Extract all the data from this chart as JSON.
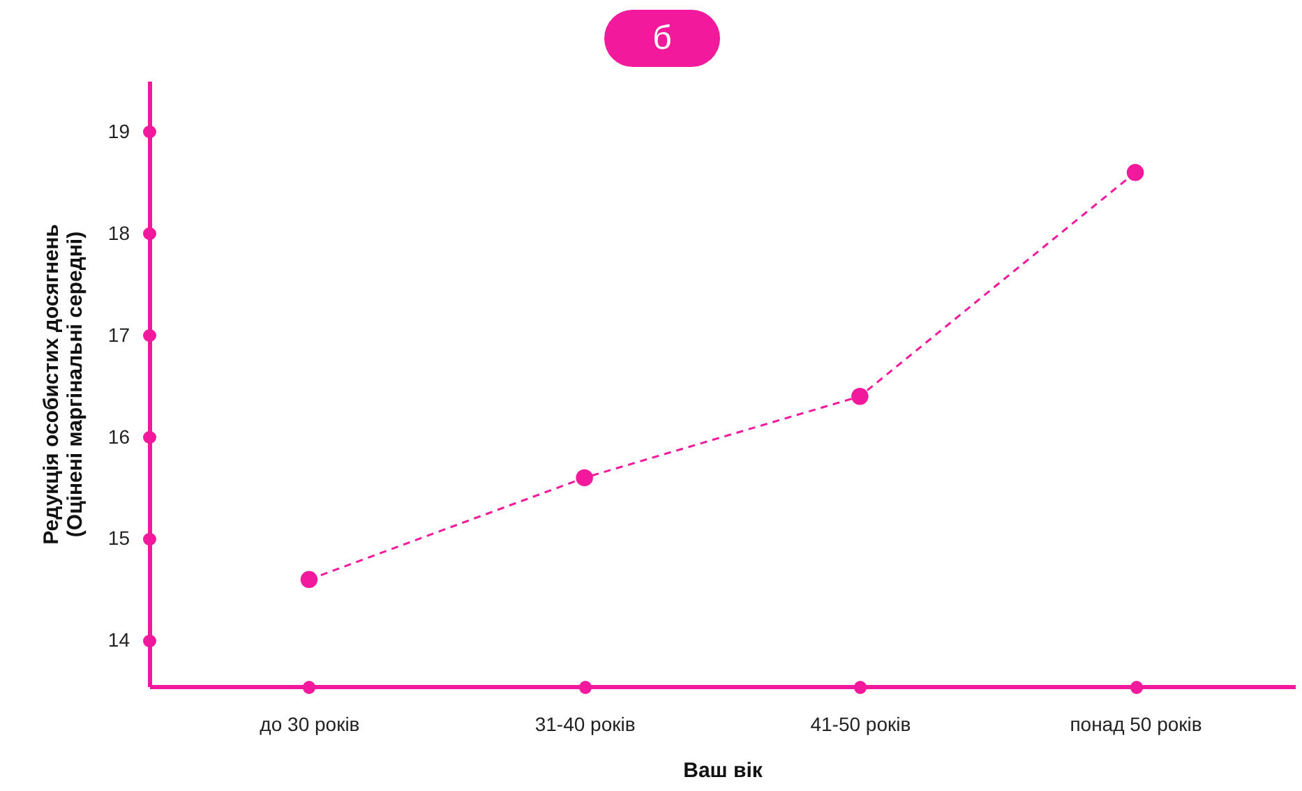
{
  "chart_data": {
    "type": "line",
    "title": "б",
    "xlabel": "Ваш вік",
    "ylabel": "Редукція особистих досягнень\n(Оцінені маргінальні середні)",
    "categories": [
      "до 30 років",
      "31-40 років",
      "41-50 років",
      "понад 50 років"
    ],
    "series": [
      {
        "color": "#f2199c",
        "values": [
          14.6,
          15.6,
          16.4,
          18.6
        ]
      }
    ],
    "ylim": [
      13.55,
      19.5
    ],
    "yticks": [
      14,
      15,
      16,
      17,
      18,
      19
    ],
    "grid": false,
    "marker": "circle",
    "line_style": "dashed"
  }
}
